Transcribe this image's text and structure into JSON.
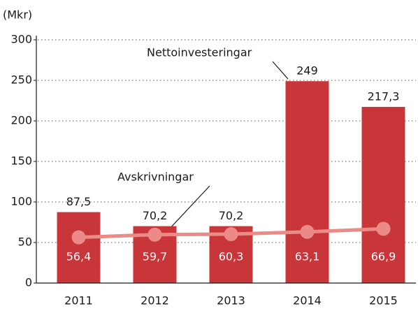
{
  "chart_data": {
    "type": "bar",
    "y_label": "(Mkr)",
    "categories": [
      "2011",
      "2012",
      "2013",
      "2014",
      "2015"
    ],
    "series": [
      {
        "name": "Nettoinvesteringar",
        "type": "bar",
        "color": "#c8363a",
        "values": [
          87.5,
          70.2,
          70.2,
          249,
          217.3
        ],
        "value_labels": [
          "87,5",
          "70,2",
          "70,2",
          "249",
          "217,3"
        ]
      },
      {
        "name": "Avskrivningar",
        "type": "line",
        "color": "#eb8a86",
        "values": [
          56.4,
          59.7,
          60.3,
          63.1,
          66.9
        ],
        "value_labels": [
          "56,4",
          "59,7",
          "60,3",
          "63,1",
          "66,9"
        ]
      }
    ],
    "ylim": [
      0,
      300
    ],
    "yticks": [
      0,
      50,
      100,
      150,
      200,
      250,
      300
    ],
    "grid": true
  }
}
